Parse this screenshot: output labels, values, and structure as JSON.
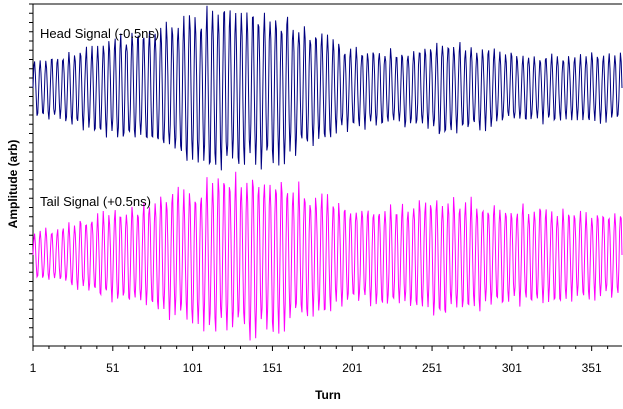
{
  "chart_data": {
    "type": "line",
    "title": "",
    "xlabel": "Turn",
    "ylabel": "Amplitude (arb)",
    "xlim": [
      1,
      370
    ],
    "x_ticks": [
      "1",
      "51",
      "101",
      "151",
      "201",
      "251",
      "301",
      "351"
    ],
    "grid": false,
    "legend": "none",
    "series": [
      {
        "name": "Head Signal (-0.5ns)",
        "color": "#000080",
        "samples_per_turn": 1,
        "oscillation_period_turns": 3.6,
        "envelope": {
          "x": [
            1,
            20,
            60,
            100,
            120,
            140,
            160,
            200,
            230,
            260,
            300,
            340,
            370
          ],
          "amp": [
            0.32,
            0.38,
            0.62,
            0.85,
            0.95,
            0.92,
            0.82,
            0.46,
            0.44,
            0.55,
            0.4,
            0.38,
            0.4
          ]
        }
      },
      {
        "name": "Tail Signal (+0.5ns)",
        "color": "#FF00FF",
        "samples_per_turn": 1,
        "oscillation_period_turns": 3.6,
        "envelope": {
          "x": [
            1,
            20,
            60,
            100,
            120,
            140,
            160,
            200,
            230,
            260,
            300,
            340,
            370
          ],
          "amp": [
            0.28,
            0.34,
            0.58,
            0.8,
            0.92,
            0.95,
            0.85,
            0.58,
            0.62,
            0.7,
            0.58,
            0.54,
            0.52
          ]
        }
      }
    ]
  }
}
